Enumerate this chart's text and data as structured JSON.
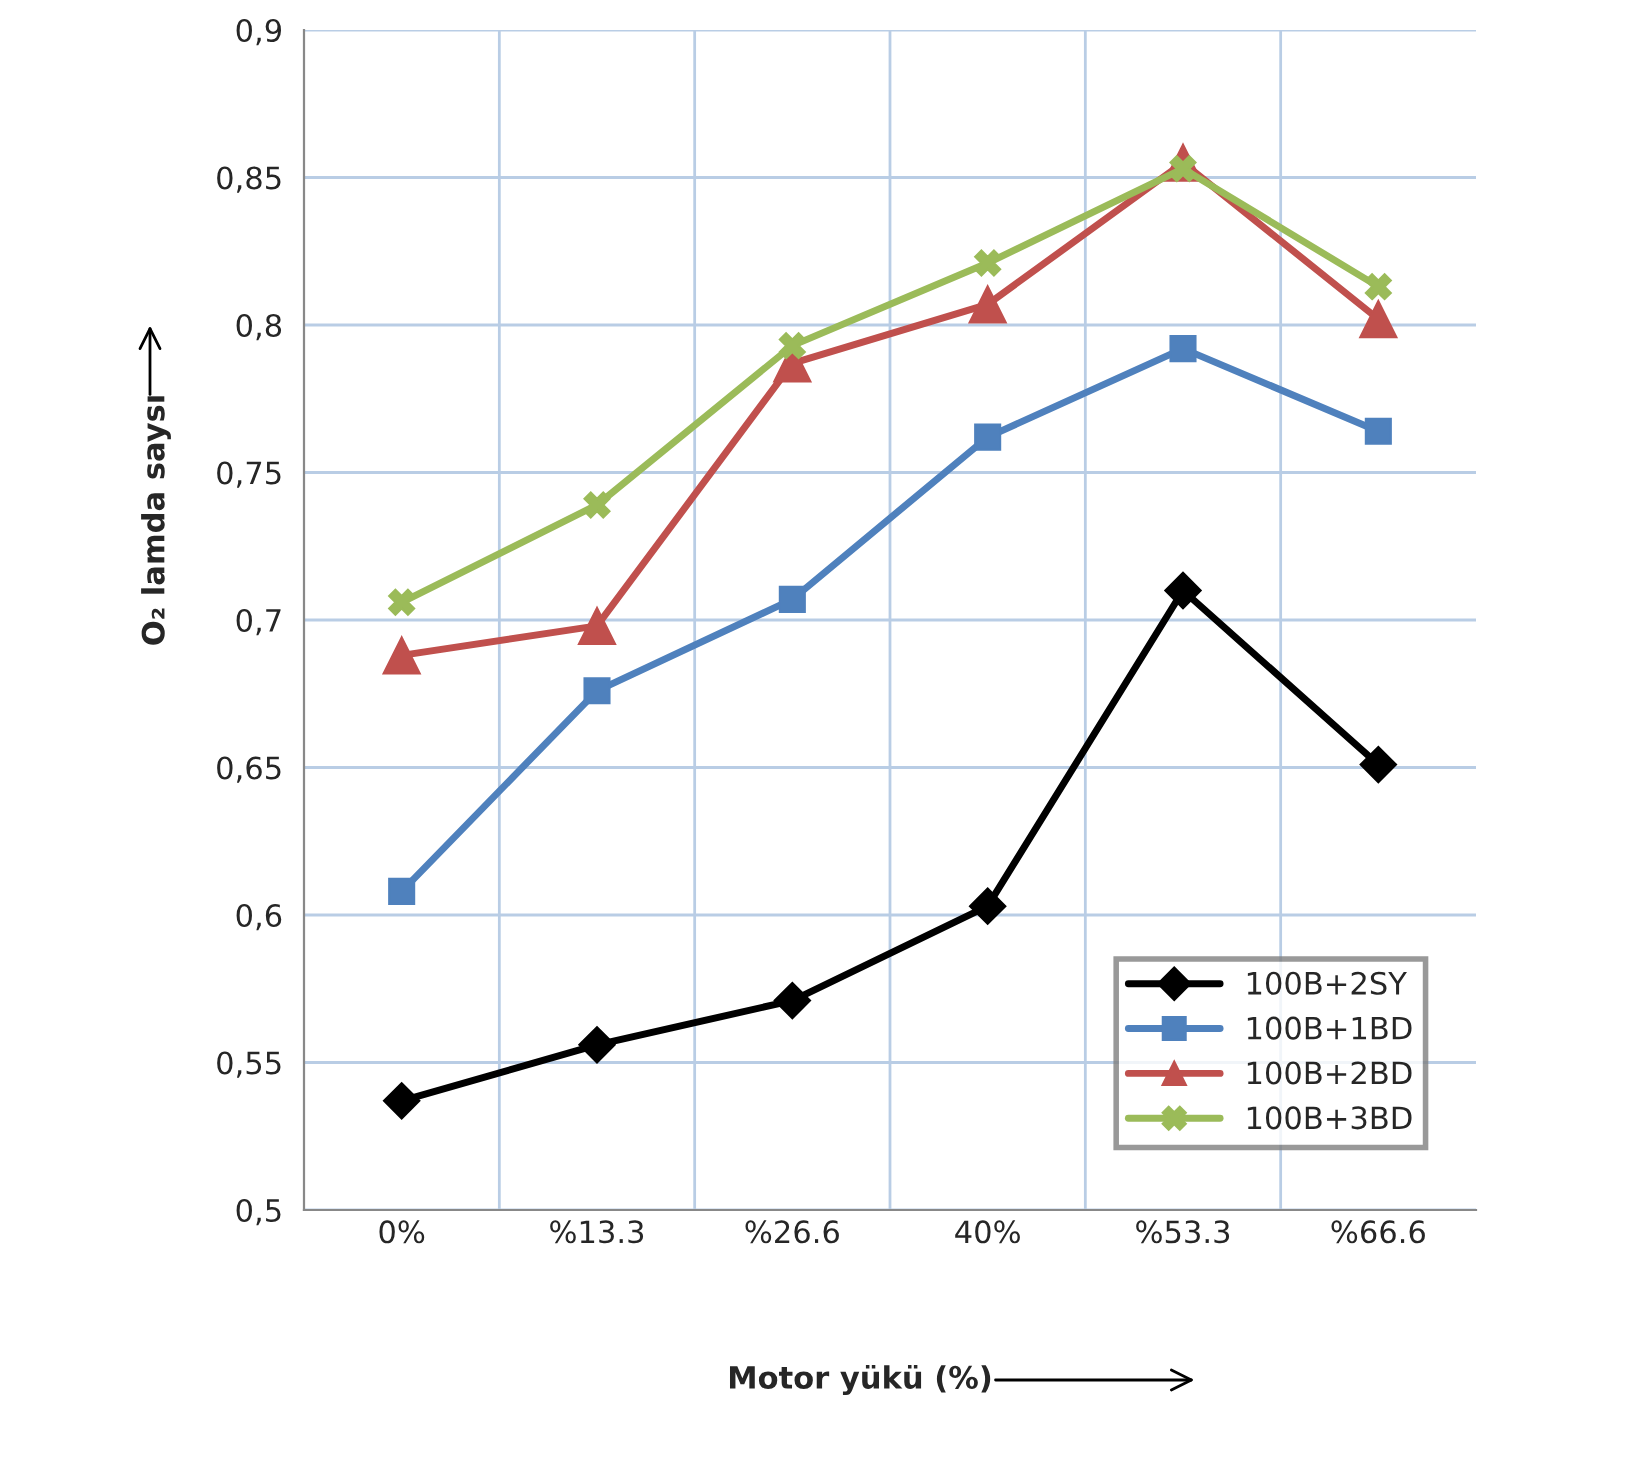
{
  "chart_data": {
    "type": "line",
    "xlabel": "Motor yükü (%)",
    "ylabel": "O₂ lamda saysı",
    "categories": [
      "0%",
      "%13.3",
      "%26.6",
      "40%",
      "%53.3",
      "%66.6"
    ],
    "series": [
      {
        "name": "100B+2SY",
        "color": "#000000",
        "marker": "diamond",
        "values": [
          0.537,
          0.556,
          0.571,
          0.603,
          0.71,
          0.651
        ]
      },
      {
        "name": "100B+1BD",
        "color": "#4f81bd",
        "marker": "square",
        "values": [
          0.608,
          0.676,
          0.707,
          0.762,
          0.792,
          0.764
        ]
      },
      {
        "name": "100B+2BD",
        "color": "#c0504d",
        "marker": "triangle",
        "values": [
          0.688,
          0.698,
          0.787,
          0.807,
          0.855,
          0.802
        ]
      },
      {
        "name": "100B+3BD",
        "color": "#9bbb59",
        "marker": "cross",
        "values": [
          0.706,
          0.739,
          0.793,
          0.821,
          0.853,
          0.813
        ]
      }
    ],
    "ylim": [
      0.5,
      0.9
    ],
    "yticks": [
      {
        "value": 0.5,
        "label": "0,5"
      },
      {
        "value": 0.55,
        "label": "0,55"
      },
      {
        "value": 0.6,
        "label": "0,6"
      },
      {
        "value": 0.65,
        "label": "0,65"
      },
      {
        "value": 0.7,
        "label": "0,7"
      },
      {
        "value": 0.75,
        "label": "0,75"
      },
      {
        "value": 0.8,
        "label": "0,8"
      },
      {
        "value": 0.85,
        "label": "0,85"
      },
      {
        "value": 0.9,
        "label": "0,9"
      }
    ],
    "grid": true,
    "legend": "bottom right",
    "line_style": "solid"
  }
}
